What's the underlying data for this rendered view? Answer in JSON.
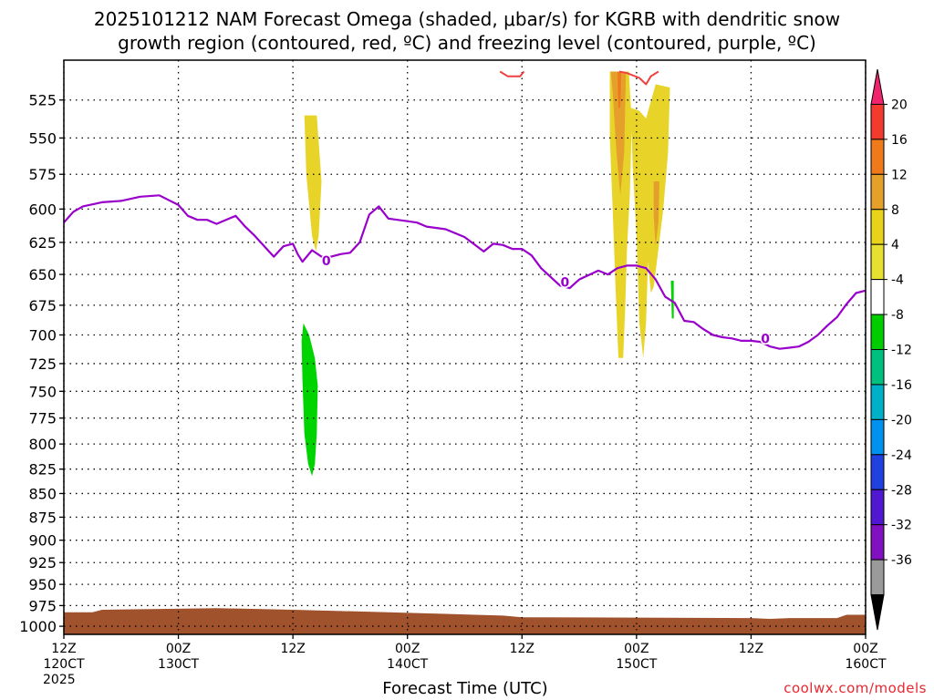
{
  "title": {
    "line1": "2025101212 NAM Forecast Omega (shaded, μbar/s) for KGRB with dendritic snow",
    "line2": "growth region (contoured, red, ºC) and freezing level (contoured, purple, ºC)"
  },
  "credit": "coolwx.com/models",
  "chart_data": {
    "type": "area",
    "xlabel": "Forecast Time (UTC)",
    "ylabel": "",
    "y_scale": "log",
    "y_reversed": true,
    "ylim": [
      1010,
      500
    ],
    "y_ticks": [
      525,
      550,
      575,
      600,
      625,
      650,
      675,
      700,
      725,
      750,
      775,
      800,
      825,
      850,
      875,
      900,
      925,
      950,
      975,
      1000
    ],
    "x_ticks": [
      {
        "hour": 0,
        "lines": [
          "12Z",
          "120CT",
          "2025"
        ]
      },
      {
        "hour": 12,
        "lines": [
          "00Z",
          "130CT"
        ]
      },
      {
        "hour": 24,
        "lines": [
          "12Z"
        ]
      },
      {
        "hour": 36,
        "lines": [
          "00Z",
          "140CT"
        ]
      },
      {
        "hour": 48,
        "lines": [
          "12Z"
        ]
      },
      {
        "hour": 60,
        "lines": [
          "00Z",
          "150CT"
        ]
      },
      {
        "hour": 72,
        "lines": [
          "12Z"
        ]
      },
      {
        "hour": 84,
        "lines": [
          "00Z",
          "160CT"
        ]
      }
    ],
    "xlim": [
      0,
      84
    ],
    "grid": true,
    "colorbar": {
      "labels": [
        "20",
        "16",
        "12",
        "8",
        "4",
        "-4",
        "-8",
        "-12",
        "-16",
        "-20",
        "-24",
        "-28",
        "-32",
        "-36"
      ],
      "colors": [
        "#f0246c",
        "#f23a2e",
        "#ee7a1c",
        "#e4a02a",
        "#e8d21a",
        "#e8e030",
        "#ffffff",
        "#00cc00",
        "#00c080",
        "#00b0c8",
        "#0090ee",
        "#2040e0",
        "#5018d0",
        "#8010c0",
        "#9a9a9a",
        "#000000"
      ]
    },
    "freezing_level": {
      "label": "0",
      "color": "#9900cc",
      "x": [
        0,
        1,
        2,
        4,
        6,
        8,
        10,
        12,
        13,
        14,
        15,
        16,
        18,
        19,
        20,
        22,
        23,
        24,
        24.5,
        25,
        26,
        27,
        28,
        29,
        30,
        31,
        32,
        33,
        34,
        36,
        37,
        38,
        40,
        42,
        44,
        45,
        46,
        47,
        48,
        49,
        50,
        52,
        53,
        54,
        56,
        57,
        58,
        59,
        60,
        61,
        62,
        63,
        64,
        65,
        66,
        67,
        68,
        69,
        70,
        71,
        72,
        73,
        74,
        75,
        76,
        77,
        78,
        79,
        80,
        81,
        82,
        83,
        84
      ],
      "y": [
        610,
        602,
        598,
        595,
        594,
        591,
        590,
        597,
        605,
        608,
        608,
        611,
        605,
        613,
        620,
        636,
        628,
        626,
        634,
        640,
        631,
        636,
        636,
        634,
        633,
        625,
        604,
        598,
        607,
        609,
        610,
        613,
        615,
        621,
        632,
        626,
        627,
        630,
        630,
        635,
        645,
        659,
        661,
        654,
        647,
        650,
        645,
        643,
        643,
        645,
        654,
        668,
        673,
        688,
        689,
        695,
        700,
        702,
        703,
        705,
        705,
        706,
        710,
        712,
        711,
        710,
        706,
        700,
        692,
        685,
        674,
        665,
        663
      ]
    },
    "dgz_contour": {
      "color": "#f04040",
      "segments": [
        {
          "x": [
            45.7,
            46.5,
            47.8,
            48.2
          ],
          "y": [
            507,
            510,
            510,
            507
          ]
        },
        {
          "x": [
            58.2,
            59.0,
            60.3,
            61.0,
            61.5,
            62.3
          ],
          "y": [
            507,
            508,
            511,
            515,
            510,
            507
          ]
        }
      ]
    },
    "regions": [
      {
        "name": "Omega +4",
        "color": "#e8d428",
        "points": [
          [
            25.2,
            535
          ],
          [
            26.5,
            535
          ],
          [
            27.0,
            580
          ],
          [
            26.7,
            620
          ],
          [
            26.4,
            632
          ],
          [
            26.0,
            620
          ],
          [
            25.4,
            575
          ]
        ]
      },
      {
        "name": "Omega +4",
        "color": "#e8d428",
        "points": [
          [
            57.2,
            507
          ],
          [
            59.2,
            507
          ],
          [
            59.5,
            540
          ],
          [
            59.3,
            590
          ],
          [
            59.0,
            630
          ],
          [
            58.8,
            680
          ],
          [
            58.6,
            720
          ],
          [
            58.1,
            720
          ],
          [
            57.8,
            660
          ],
          [
            57.5,
            600
          ],
          [
            57.2,
            550
          ]
        ]
      },
      {
        "name": "Omega +4",
        "color": "#e8d428",
        "points": [
          [
            59.4,
            530
          ],
          [
            60.3,
            532
          ],
          [
            61.0,
            537
          ],
          [
            62.0,
            515
          ],
          [
            63.5,
            517
          ],
          [
            63.3,
            560
          ],
          [
            62.8,
            600
          ],
          [
            62.3,
            630
          ],
          [
            61.8,
            660
          ],
          [
            61.5,
            665
          ],
          [
            61.2,
            640
          ],
          [
            61.0,
            690
          ],
          [
            60.7,
            720
          ],
          [
            60.3,
            690
          ],
          [
            60.0,
            620
          ],
          [
            59.6,
            570
          ]
        ]
      },
      {
        "name": "Omega +8",
        "color": "#e4a02a",
        "points": [
          [
            57.3,
            507
          ],
          [
            58.9,
            507
          ],
          [
            58.7,
            560
          ],
          [
            58.3,
            590
          ],
          [
            57.9,
            560
          ],
          [
            57.5,
            520
          ]
        ]
      },
      {
        "name": "Omega +8",
        "color": "#e4a02a",
        "points": [
          [
            61.8,
            580
          ],
          [
            62.4,
            580
          ],
          [
            62.3,
            610
          ],
          [
            62.0,
            628
          ],
          [
            61.8,
            605
          ]
        ]
      },
      {
        "name": "Omega +12",
        "color": "#ee7a1c",
        "points": [
          [
            58.0,
            507
          ],
          [
            58.4,
            507
          ],
          [
            58.3,
            530
          ],
          [
            58.1,
            530
          ]
        ]
      },
      {
        "name": "Omega -4",
        "color": "#00d400",
        "points": [
          [
            25.1,
            690
          ],
          [
            25.7,
            700
          ],
          [
            26.3,
            720
          ],
          [
            26.6,
            745
          ],
          [
            26.5,
            790
          ],
          [
            26.3,
            820
          ],
          [
            26.0,
            832
          ],
          [
            25.6,
            820
          ],
          [
            25.2,
            790
          ],
          [
            25.0,
            740
          ],
          [
            24.9,
            705
          ]
        ]
      },
      {
        "name": "Omega -4",
        "color": "#00d400",
        "points": [
          [
            63.6,
            655
          ],
          [
            63.9,
            655
          ],
          [
            63.9,
            686
          ],
          [
            63.7,
            686
          ]
        ]
      },
      {
        "name": "Terrain",
        "color": "#a0522d",
        "points": [
          [
            0,
            983
          ],
          [
            3,
            983
          ],
          [
            4,
            980
          ],
          [
            10,
            979
          ],
          [
            16,
            978
          ],
          [
            24,
            980
          ],
          [
            34,
            983
          ],
          [
            40,
            985
          ],
          [
            46,
            987
          ],
          [
            48,
            989
          ],
          [
            72,
            990
          ],
          [
            74,
            991
          ],
          [
            76,
            990
          ],
          [
            81,
            990
          ],
          [
            82,
            986
          ],
          [
            84,
            986
          ],
          [
            84,
            1010
          ],
          [
            0,
            1010
          ]
        ]
      }
    ]
  }
}
